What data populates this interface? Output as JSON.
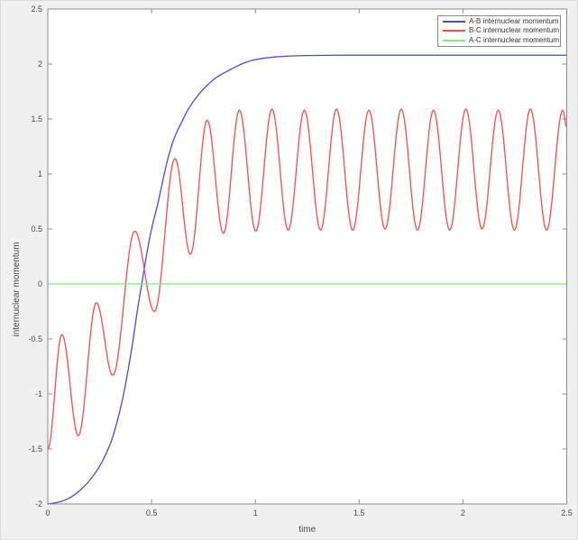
{
  "window": {
    "background": "#f0f0f0",
    "plot_background": "#ffffff",
    "axis_color": "#8c8c8c",
    "tick_label_color": "#4a4a4a"
  },
  "chart_data": {
    "type": "line",
    "title": "",
    "xlabel": "time",
    "ylabel": "internuclear momentum",
    "xlim": [
      0,
      2.5
    ],
    "ylim": [
      -2,
      2.5
    ],
    "grid": false,
    "legend_position": "top-right",
    "xticks": [
      [
        "0",
        0
      ],
      [
        "0.5",
        0.5
      ],
      [
        "1",
        1
      ],
      [
        "1.5",
        1.5
      ],
      [
        "2",
        2
      ],
      [
        "2.5",
        2.5
      ]
    ],
    "yticks": [
      [
        "-2",
        -2
      ],
      [
        "-1.5",
        -1.5
      ],
      [
        "-1",
        -1
      ],
      [
        "-0.5",
        -0.5
      ],
      [
        "0",
        0
      ],
      [
        "0.5",
        0.5
      ],
      [
        "1",
        1
      ],
      [
        "1.5",
        1.5
      ],
      [
        "2",
        2
      ],
      [
        "2.5",
        2.5
      ]
    ],
    "series": [
      {
        "name": "A-B internuclear momentum",
        "color": "#4a4ae0",
        "shape": "sigmoid rise from -2 to plateau 2.08",
        "interp": "smooth",
        "points": [
          [
            0.0,
            -2.0
          ],
          [
            0.05,
            -1.985
          ],
          [
            0.1,
            -1.95
          ],
          [
            0.15,
            -1.885
          ],
          [
            0.2,
            -1.79
          ],
          [
            0.25,
            -1.655
          ],
          [
            0.3,
            -1.46
          ],
          [
            0.33,
            -1.28
          ],
          [
            0.36,
            -1.05
          ],
          [
            0.39,
            -0.75
          ],
          [
            0.41,
            -0.52
          ],
          [
            0.43,
            -0.26
          ],
          [
            0.45,
            -0.03
          ],
          [
            0.47,
            0.2
          ],
          [
            0.49,
            0.41
          ],
          [
            0.51,
            0.58
          ],
          [
            0.53,
            0.73
          ],
          [
            0.56,
            0.99
          ],
          [
            0.58,
            1.15
          ],
          [
            0.61,
            1.33
          ],
          [
            0.65,
            1.49
          ],
          [
            0.68,
            1.6
          ],
          [
            0.73,
            1.73
          ],
          [
            0.77,
            1.81
          ],
          [
            0.81,
            1.875
          ],
          [
            0.86,
            1.93
          ],
          [
            0.9,
            1.97
          ],
          [
            0.94,
            2.005
          ],
          [
            1.0,
            2.04
          ],
          [
            1.1,
            2.065
          ],
          [
            1.2,
            2.075
          ],
          [
            1.4,
            2.08
          ],
          [
            1.7,
            2.08
          ],
          [
            2.0,
            2.08
          ],
          [
            2.5,
            2.08
          ]
        ]
      },
      {
        "name": "B-C internuclear momentum",
        "color": "#f04f4f",
        "shape": "oscillation rising from mean -1 to steady cycle 0.49..1.59, period ~0.156",
        "interp": "cosine-extrema",
        "points": [
          [
            0.0,
            -1.5
          ],
          [
            0.068,
            -0.46
          ],
          [
            0.147,
            -1.38
          ],
          [
            0.234,
            -0.17
          ],
          [
            0.313,
            -0.83
          ],
          [
            0.419,
            0.48
          ],
          [
            0.514,
            -0.25
          ],
          [
            0.613,
            1.14
          ],
          [
            0.687,
            0.27
          ],
          [
            0.768,
            1.49
          ],
          [
            0.846,
            0.46
          ],
          [
            0.923,
            1.58
          ],
          [
            1.002,
            0.48
          ],
          [
            1.08,
            1.59
          ],
          [
            1.158,
            0.49
          ],
          [
            1.236,
            1.58
          ],
          [
            1.314,
            0.49
          ],
          [
            1.391,
            1.59
          ],
          [
            1.469,
            0.49
          ],
          [
            1.547,
            1.58
          ],
          [
            1.625,
            0.5
          ],
          [
            1.703,
            1.59
          ],
          [
            1.781,
            0.49
          ],
          [
            1.858,
            1.58
          ],
          [
            1.936,
            0.49
          ],
          [
            2.014,
            1.59
          ],
          [
            2.092,
            0.5
          ],
          [
            2.17,
            1.58
          ],
          [
            2.248,
            0.49
          ],
          [
            2.325,
            1.59
          ],
          [
            2.403,
            0.49
          ],
          [
            2.481,
            1.58
          ],
          [
            2.5,
            1.43
          ]
        ]
      },
      {
        "name": "A-C internuclear momentum",
        "color": "#7fee7f",
        "shape": "constant zero line",
        "interp": "linear",
        "points": [
          [
            0.0,
            0.0
          ],
          [
            2.5,
            0.0
          ]
        ]
      }
    ]
  }
}
